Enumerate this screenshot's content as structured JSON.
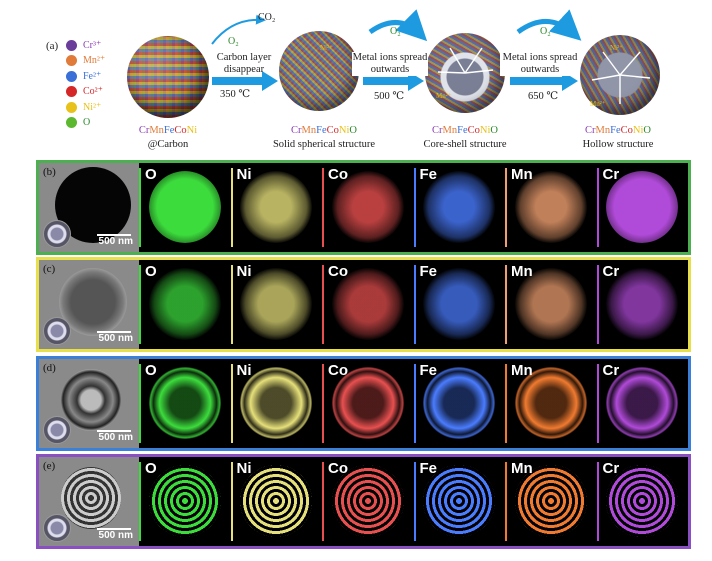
{
  "panel_a": {
    "letter": "(a)",
    "legend": [
      {
        "label": "Cr³⁺",
        "color": "#6a3d9a",
        "text_color": "#8b3fb5"
      },
      {
        "label": "Mn²⁺",
        "color": "#e07b39",
        "text_color": "#e07b39"
      },
      {
        "label": "Fe²⁺",
        "color": "#3a6fd8",
        "text_color": "#3a6fd8"
      },
      {
        "label": "Co²⁺",
        "color": "#d62728",
        "text_color": "#d62728"
      },
      {
        "label": "Ni²⁺",
        "color": "#e8c21a",
        "text_color": "#e8c21a"
      },
      {
        "label": "O",
        "color": "#5cb82e",
        "text_color": "#2a8a2a"
      }
    ],
    "co2": "CO₂",
    "o2_labels": [
      "O₂",
      "O₂",
      "O₂"
    ],
    "steps": [
      {
        "text": "Carbon layer disappear",
        "temp": "350 ℃"
      },
      {
        "text": "Metal ions spread outwards",
        "temp": "500 ℃"
      },
      {
        "text": "Metal ions spread outwards",
        "temp": "650 ℃"
      }
    ],
    "stages": [
      {
        "formula": [
          "Cr",
          "Mn",
          "Fe",
          "Co",
          "Ni"
        ],
        "suffix": "",
        "caption": "@Carbon"
      },
      {
        "formula": [
          "Cr",
          "Mn",
          "Fe",
          "Co",
          "Ni"
        ],
        "suffix": "O",
        "caption": "Solid spherical structure"
      },
      {
        "formula": [
          "Cr",
          "Mn",
          "Fe",
          "Co",
          "Ni"
        ],
        "suffix": "O",
        "caption": "Core-shell structure"
      },
      {
        "formula": [
          "Cr",
          "Mn",
          "Fe",
          "Co",
          "Ni"
        ],
        "suffix": "O",
        "caption": "Hollow structure"
      }
    ],
    "formula_colors": [
      "#8b3fb5",
      "#e07b39",
      "#3a6fd8",
      "#d62728",
      "#e8c21a"
    ],
    "inner_labels": [
      "Ni²⁺",
      "Mn²⁺",
      "Ni²⁺",
      "Mn²⁺"
    ]
  },
  "rows": [
    {
      "letter": "(b)",
      "border": "#4caf50",
      "scale": "500 nm",
      "elements": [
        {
          "name": "O",
          "color": "#3ddc3d",
          "sep": "#3ddc3d"
        },
        {
          "name": "Ni",
          "color": "#e6e07a",
          "sep": "#e6e07a"
        },
        {
          "name": "Co",
          "color": "#e85050",
          "sep": "#e85050"
        },
        {
          "name": "Fe",
          "color": "#4a7cff",
          "sep": "#4a7cff"
        },
        {
          "name": "Mn",
          "color": "#f0a070",
          "sep": "#f0a070"
        },
        {
          "name": "Cr",
          "color": "#b04ad8",
          "sep": "#b04ad8"
        }
      ]
    },
    {
      "letter": "(c)",
      "border": "#e8e04a",
      "scale": "500 nm",
      "elements": [
        {
          "name": "O",
          "color": "#3ddc3d",
          "sep": "#3ddc3d"
        },
        {
          "name": "Ni",
          "color": "#e6e07a",
          "sep": "#e6e07a"
        },
        {
          "name": "Co",
          "color": "#e85050",
          "sep": "#e85050"
        },
        {
          "name": "Fe",
          "color": "#4a7cff",
          "sep": "#4a7cff"
        },
        {
          "name": "Mn",
          "color": "#f0a070",
          "sep": "#f0a070"
        },
        {
          "name": "Cr",
          "color": "#b04ad8",
          "sep": "#b04ad8"
        }
      ]
    },
    {
      "letter": "(d)",
      "border": "#3a7fd8",
      "scale": "500 nm",
      "elements": [
        {
          "name": "O",
          "color": "#3ddc3d",
          "sep": "#3ddc3d"
        },
        {
          "name": "Ni",
          "color": "#e6e07a",
          "sep": "#e6e07a"
        },
        {
          "name": "Co",
          "color": "#e85050",
          "sep": "#e85050"
        },
        {
          "name": "Fe",
          "color": "#4a7cff",
          "sep": "#4a7cff"
        },
        {
          "name": "Mn",
          "color": "#f07a30",
          "sep": "#f07a30"
        },
        {
          "name": "Cr",
          "color": "#b04ad8",
          "sep": "#b04ad8"
        }
      ]
    },
    {
      "letter": "(e)",
      "border": "#8a4fc0",
      "scale": "500 nm",
      "elements": [
        {
          "name": "O",
          "color": "#3ddc3d",
          "sep": "#3ddc3d"
        },
        {
          "name": "Ni",
          "color": "#e6e07a",
          "sep": "#e6e07a"
        },
        {
          "name": "Co",
          "color": "#e85050",
          "sep": "#e85050"
        },
        {
          "name": "Fe",
          "color": "#4a7cff",
          "sep": "#4a7cff"
        },
        {
          "name": "Mn",
          "color": "#f07a30",
          "sep": "#f07a30"
        },
        {
          "name": "Cr",
          "color": "#b04ad8",
          "sep": "#b04ad8"
        }
      ]
    }
  ]
}
